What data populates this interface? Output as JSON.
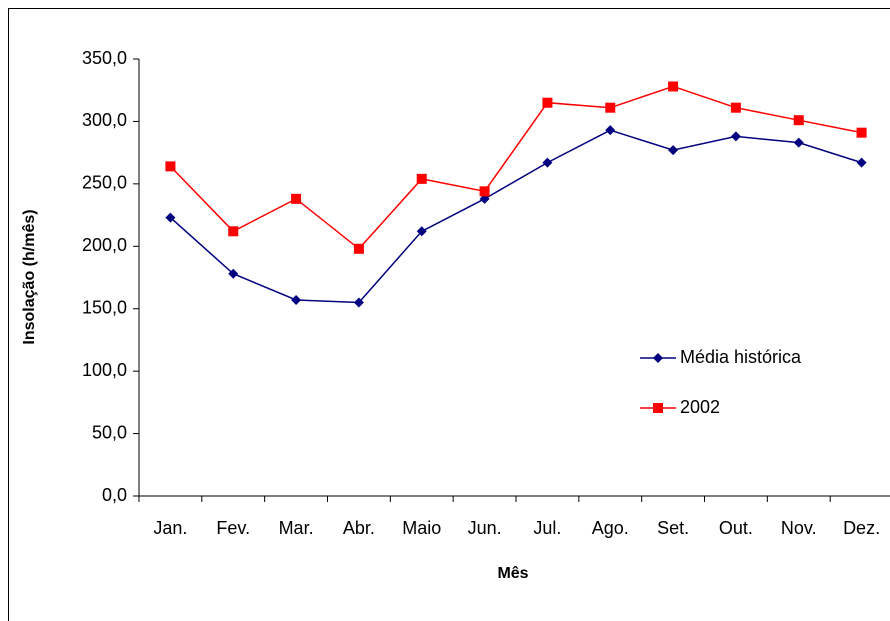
{
  "chart_data": {
    "type": "line",
    "x_label": "Mês",
    "y_label": "Insolação (h/mês)",
    "categories": [
      "Jan.",
      "Fev.",
      "Mar.",
      "Abr.",
      "Maio",
      "Jun.",
      "Jul.",
      "Ago.",
      "Set.",
      "Out.",
      "Nov.",
      "Dez."
    ],
    "series": [
      {
        "name": "Média histórica",
        "color": "#000080",
        "marker": "diamond",
        "values": [
          223,
          178,
          157,
          155,
          212,
          238,
          267,
          293,
          277,
          288,
          283,
          267
        ]
      },
      {
        "name": "2002",
        "color": "#ff0000",
        "marker": "square",
        "values": [
          264,
          212,
          238,
          198,
          254,
          244,
          315,
          311,
          328,
          311,
          301,
          291
        ]
      }
    ],
    "ylim": [
      0,
      350
    ],
    "yticks": [
      {
        "value": 0,
        "label": "0,0"
      },
      {
        "value": 50,
        "label": "50,0"
      },
      {
        "value": 100,
        "label": "100,0"
      },
      {
        "value": 150,
        "label": "150,0"
      },
      {
        "value": 200,
        "label": "200,0"
      },
      {
        "value": 250,
        "label": "250,0"
      },
      {
        "value": 300,
        "label": "300,0"
      },
      {
        "value": 350,
        "label": "350,0"
      }
    ],
    "grid": false,
    "legend": "right"
  }
}
